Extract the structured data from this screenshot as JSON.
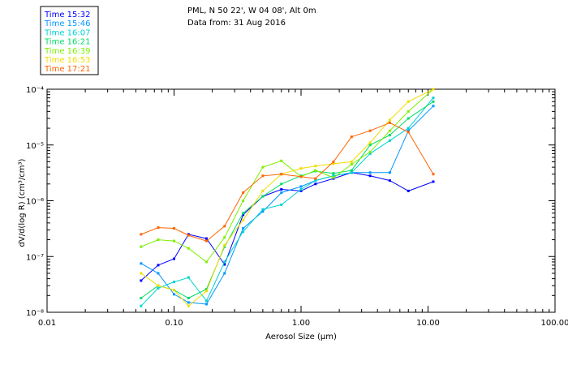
{
  "chart_data": {
    "type": "line",
    "title": "PML, N 50 22', W 04 08', Alt 0m",
    "subtitle": "Data from: 31 Aug 2016",
    "xlabel": "Aerosol Size (µm)",
    "ylabel": "dV/d(log R) (cm³/cm³)",
    "x_scale": "log",
    "y_scale": "log",
    "xlim": [
      0.01,
      100
    ],
    "ylim": [
      1e-08,
      0.0001
    ],
    "x_tick_labels": [
      "0.01",
      "0.10",
      "1.00",
      "10.00",
      "100.00"
    ],
    "y_tick_labels": [
      "10⁻⁸",
      "10⁻⁷",
      "10⁻⁶",
      "10⁻⁵",
      "10⁻⁴"
    ],
    "grid": false,
    "legend_position": "top-left-outside",
    "x": [
      0.055,
      0.075,
      0.1,
      0.13,
      0.18,
      0.25,
      0.35,
      0.5,
      0.7,
      1.0,
      1.3,
      1.8,
      2.5,
      3.5,
      5.0,
      7.0,
      11.0
    ],
    "series": [
      {
        "name": "Time 15:32",
        "color": "#0000ff",
        "values": [
          3.7e-08,
          7e-08,
          9.1e-08,
          2.5e-07,
          2.1e-07,
          7.2e-08,
          5.6e-07,
          1.2e-06,
          1.6e-06,
          1.5e-06,
          2e-06,
          2.5e-06,
          3.2e-06,
          2.8e-06,
          2.3e-06,
          1.5e-06,
          2.2e-06
        ]
      },
      {
        "name": "Time 15:46",
        "color": "#0096ff",
        "values": [
          7.5e-08,
          5e-08,
          2.1e-08,
          1.5e-08,
          1.4e-08,
          5e-08,
          3.2e-07,
          6.4e-07,
          1.4e-06,
          1.8e-06,
          2.3e-06,
          2.8e-06,
          3.2e-06,
          3.2e-06,
          3.2e-06,
          1.8e-05,
          5e-05
        ]
      },
      {
        "name": "Time 16:07",
        "color": "#00d2d2",
        "values": [
          1.3e-08,
          2.7e-08,
          3.5e-08,
          4.2e-08,
          1.6e-08,
          8e-08,
          2.8e-07,
          7e-07,
          8.5e-07,
          1.6e-06,
          2.3e-06,
          2.8e-06,
          3.2e-06,
          7e-06,
          1.2e-05,
          2e-05,
          7e-05
        ]
      },
      {
        "name": "Time 16:21",
        "color": "#00dc64",
        "values": [
          1.8e-08,
          3e-08,
          2.5e-08,
          1.8e-08,
          2.6e-08,
          1.5e-07,
          6e-07,
          1.2e-06,
          2e-06,
          2.8e-06,
          3.4e-06,
          3.1e-06,
          3.5e-06,
          1e-05,
          1.5e-05,
          3e-05,
          6e-05
        ]
      },
      {
        "name": "Time 16:39",
        "color": "#7df000",
        "values": [
          1.5e-07,
          2e-07,
          1.9e-07,
          1.4e-07,
          8e-08,
          2.2e-07,
          1e-06,
          4e-06,
          5.2e-06,
          2.7e-06,
          3.5e-06,
          2.6e-06,
          4.5e-06,
          7.5e-06,
          1.8e-05,
          4e-05,
          0.0001
        ]
      },
      {
        "name": "Time 16:53",
        "color": "#f0dc00",
        "values": [
          5e-08,
          3e-08,
          2.5e-08,
          1.3e-08,
          2.4e-08,
          1.6e-07,
          4.5e-07,
          1.5e-06,
          3e-06,
          3.8e-06,
          4.2e-06,
          4.6e-06,
          5e-06,
          1.1e-05,
          2.8e-05,
          6e-05,
          0.0001
        ]
      },
      {
        "name": "Time 17:21",
        "color": "#ff6400",
        "values": [
          2.5e-07,
          3.3e-07,
          3.2e-07,
          2.4e-07,
          1.9e-07,
          3.5e-07,
          1.4e-06,
          2.8e-06,
          3e-06,
          2.7e-06,
          2.5e-06,
          5e-06,
          1.4e-05,
          1.8e-05,
          2.5e-05,
          1.7e-05,
          3e-06
        ]
      }
    ]
  }
}
